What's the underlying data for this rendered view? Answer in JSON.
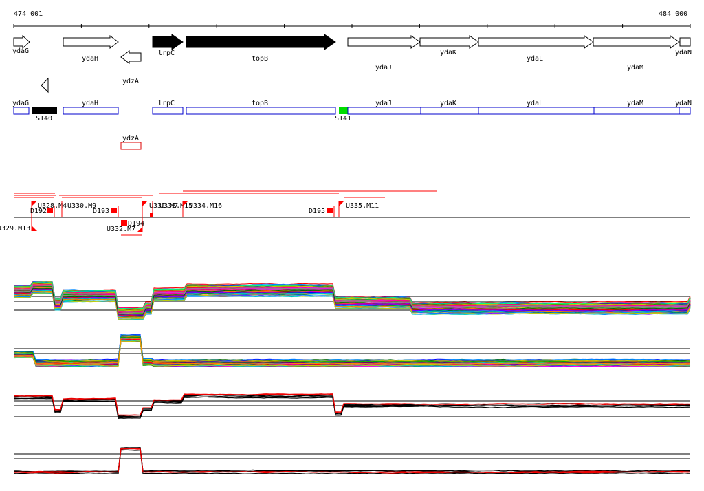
{
  "coord": {
    "start": "474 001",
    "end": "484 000"
  },
  "genes_strand_top": [
    "ydaG",
    "ydaH",
    "lrpC",
    "topB",
    "ydaJ",
    "ydaK",
    "ydaL",
    "ydaM",
    "ydaN"
  ],
  "genes_strand_bottom": [
    "ydzA"
  ],
  "annotation_genes": [
    "ydaG",
    "ydaH",
    "lrpC",
    "topB",
    "ydaJ",
    "ydaK",
    "ydaL",
    "ydaM",
    "ydaN",
    "ydzA"
  ],
  "segments": [
    "S140",
    "S141"
  ],
  "features": [
    "U328.M4",
    "U330.M9",
    "D192",
    "D193",
    "U331.M7",
    "U333.M15",
    "U334.M16",
    "D195",
    "U335.M11",
    "U329.M13",
    "D194",
    "U332.M7"
  ],
  "colors": {
    "black_gene": "#000000",
    "outline_gene": "#0000cc",
    "seg_s140": "#000000",
    "seg_s141": "#00dd00",
    "feature": "#ff0000",
    "track_red": "#ee0000"
  }
}
